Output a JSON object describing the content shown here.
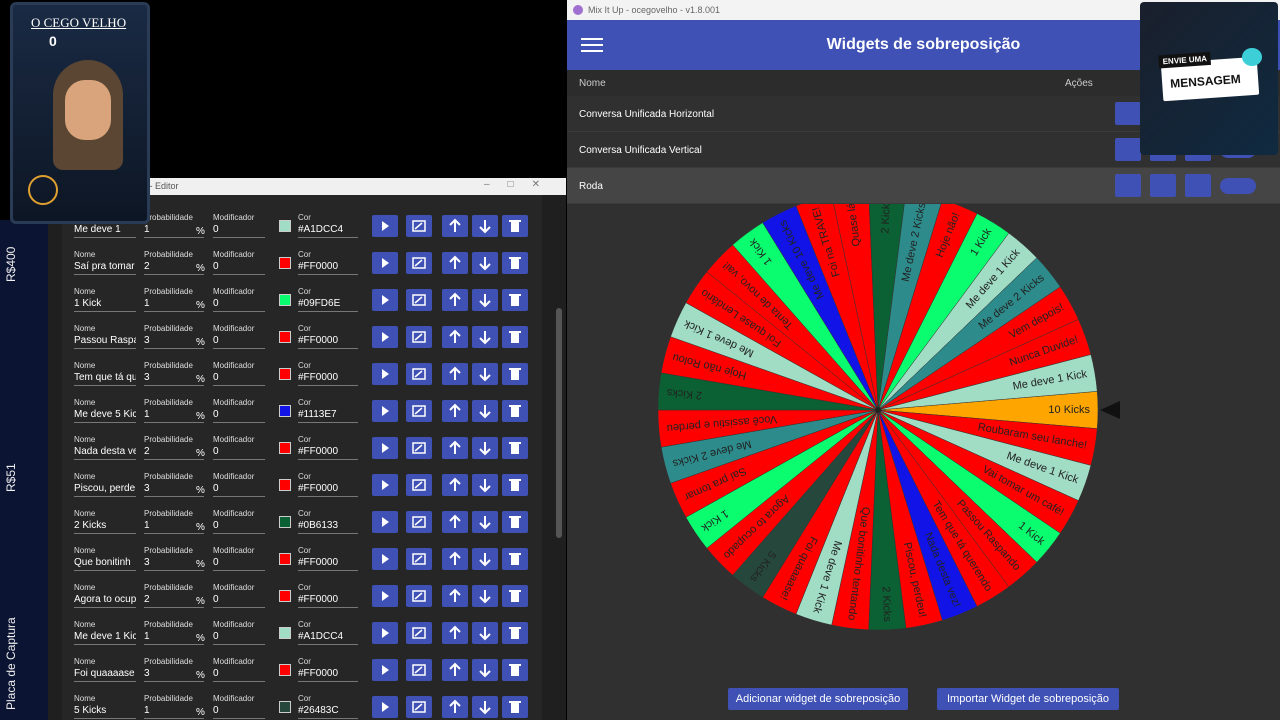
{
  "overlay": {
    "channel_name": "O CEGO VELHO",
    "counter": "0"
  },
  "sidebar": {
    "amounts": [
      "R$400",
      "R$51"
    ],
    "label": "Placa de Captura"
  },
  "editor": {
    "title": "o - Editor",
    "field_labels": {
      "name": "Nome",
      "probability": "Probabilidade",
      "modifier": "Modificador",
      "color": "Cor"
    },
    "percent": "%",
    "rows": [
      {
        "name": "Me deve 1",
        "probability": "1",
        "modifier": "0",
        "color": "#A1DCC4"
      },
      {
        "name": "Saí pra tomar",
        "probability": "2",
        "modifier": "0",
        "color": "#FF0000"
      },
      {
        "name": "1 Kick",
        "probability": "1",
        "modifier": "0",
        "color": "#09FD6E"
      },
      {
        "name": "Passou Raspa",
        "probability": "3",
        "modifier": "0",
        "color": "#FF0000"
      },
      {
        "name": "Tem que tá qu",
        "probability": "3",
        "modifier": "0",
        "color": "#FF0000"
      },
      {
        "name": "Me deve 5 Kic",
        "probability": "1",
        "modifier": "0",
        "color": "#1113E7"
      },
      {
        "name": "Nada desta ve",
        "probability": "2",
        "modifier": "0",
        "color": "#FF0000"
      },
      {
        "name": "Piscou, perde",
        "probability": "3",
        "modifier": "0",
        "color": "#FF0000"
      },
      {
        "name": "2 Kicks",
        "probability": "1",
        "modifier": "0",
        "color": "#0B6133"
      },
      {
        "name": "Que bonitinh",
        "probability": "3",
        "modifier": "0",
        "color": "#FF0000"
      },
      {
        "name": "Agora to ocup",
        "probability": "2",
        "modifier": "0",
        "color": "#FF0000"
      },
      {
        "name": "Me deve 1 Kic",
        "probability": "1",
        "modifier": "0",
        "color": "#A1DCC4"
      },
      {
        "name": "Foi quaaaase",
        "probability": "3",
        "modifier": "0",
        "color": "#FF0000"
      },
      {
        "name": "5 Kicks",
        "probability": "1",
        "modifier": "0",
        "color": "#26483C"
      }
    ]
  },
  "mixitup": {
    "window_title": "Mix It Up - ocegovelho - v1.8.001",
    "header": "Widgets de sobreposição",
    "columns": [
      "Nome",
      "Ações"
    ],
    "widgets": [
      "Conversa Unificada Horizontal",
      "Conversa Unificada Vertical",
      "Roda"
    ],
    "buttons": [
      "Adicionar widget de sobreposição",
      "Importar Widget de sobreposição"
    ]
  },
  "wheel": {
    "segments": [
      {
        "label": "10 Kicks",
        "color": "#FFA500"
      },
      {
        "label": "Roubaram seu lanche!",
        "color": "#FF0000"
      },
      {
        "label": "Me deve 1 Kick",
        "color": "#A1DCC4"
      },
      {
        "label": "Vai tomar um café!",
        "color": "#FF0000"
      },
      {
        "label": "1 Kick",
        "color": "#09FD6E"
      },
      {
        "label": "Passou Raspando",
        "color": "#FF0000"
      },
      {
        "label": "Tem que tá querendo",
        "color": "#FF0000"
      },
      {
        "label": "Nada desta vez!",
        "color": "#1113E7"
      },
      {
        "label": "Piscou, perdeu!",
        "color": "#FF0000"
      },
      {
        "label": "2 Kicks",
        "color": "#0B6133"
      },
      {
        "label": "Que bonitinho tentando",
        "color": "#FF0000"
      },
      {
        "label": "Me deve 1 Kick",
        "color": "#A1DCC4"
      },
      {
        "label": "Foi quaaaase!",
        "color": "#FF0000"
      },
      {
        "label": "5 Kicks",
        "color": "#26483C"
      },
      {
        "label": "Agora to ocupado",
        "color": "#FF0000"
      },
      {
        "label": "1 Kick",
        "color": "#09FD6E"
      },
      {
        "label": "Saí pra tomar",
        "color": "#FF0000"
      },
      {
        "label": "Me deve 2 Kicks",
        "color": "#2E8B8B"
      },
      {
        "label": "Você assistiu e perdeu",
        "color": "#FF0000"
      },
      {
        "label": "2 Kicks",
        "color": "#0B6133"
      },
      {
        "label": "Hoje não Rolou",
        "color": "#FF0000"
      },
      {
        "label": "Me deve 1 Kick",
        "color": "#A1DCC4"
      },
      {
        "label": "Foi quase Lendário",
        "color": "#FF0000"
      },
      {
        "label": "Tenta de novo, vai!",
        "color": "#FF0000"
      },
      {
        "label": "1 Kick",
        "color": "#09FD6E"
      },
      {
        "label": "Me deve 10 Kicks",
        "color": "#1113E7"
      },
      {
        "label": "Foi na TRAVE!",
        "color": "#FF0000"
      },
      {
        "label": "Quase lá!",
        "color": "#FF0000"
      },
      {
        "label": "2 Kicks",
        "color": "#0B6133"
      },
      {
        "label": "Me deve 2 Kicks",
        "color": "#2E8B8B"
      },
      {
        "label": "Hoje não!",
        "color": "#FF0000"
      },
      {
        "label": "1 Kick",
        "color": "#09FD6E"
      },
      {
        "label": "Me deve 1 Kick",
        "color": "#A1DCC4"
      },
      {
        "label": "Me deve 2 Kicks",
        "color": "#2E8B8B"
      },
      {
        "label": "Vem depois!",
        "color": "#FF0000"
      },
      {
        "label": "Nunca Duvide!",
        "color": "#FF0000"
      },
      {
        "label": "Me deve 1 Kick",
        "color": "#A1DCC4"
      }
    ]
  },
  "message_overlay": {
    "line1": "ENVIE UMA",
    "line2": "MENSAGEM"
  }
}
